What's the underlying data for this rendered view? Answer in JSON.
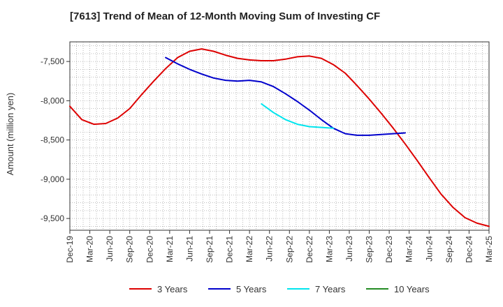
{
  "chart_data": {
    "type": "line",
    "title": "[7613]  Trend of Mean of 12-Month Moving Sum of Investing CF",
    "xlabel": "",
    "ylabel": "Amount (million yen)",
    "ylim": [
      -9650,
      -7250
    ],
    "yticks": [
      -7500,
      -8000,
      -8500,
      -9000,
      -9500
    ],
    "ytick_labels": [
      "-7,500",
      "-8,000",
      "-8,500",
      "-9,000",
      "-9,500"
    ],
    "xticks": [
      "Dec-19",
      "Mar-20",
      "Jun-20",
      "Sep-20",
      "Dec-20",
      "Mar-21",
      "Jun-21",
      "Sep-21",
      "Dec-21",
      "Mar-22",
      "Jun-22",
      "Sep-22",
      "Dec-22",
      "Mar-23",
      "Jun-23",
      "Sep-23",
      "Dec-23",
      "Mar-24",
      "Jun-24",
      "Sep-24",
      "Dec-24",
      "Mar-25"
    ],
    "grid": true,
    "legend_position": "bottom",
    "series": [
      {
        "name": "3 Years",
        "color": "#dd0000",
        "start_index": 0,
        "values": [
          -8070,
          -8240,
          -8300,
          -8290,
          -8220,
          -8100,
          -7920,
          -7750,
          -7590,
          -7450,
          -7370,
          -7340,
          -7370,
          -7420,
          -7460,
          -7480,
          -7490,
          -7490,
          -7470,
          -7440,
          -7430,
          -7460,
          -7540,
          -7650,
          -7810,
          -7980,
          -8160,
          -8350,
          -8550,
          -8760,
          -8980,
          -9190,
          -9360,
          -9490,
          -9560,
          -9600
        ]
      },
      {
        "name": "5 Years",
        "color": "#0000cc",
        "start_index": 8,
        "values": [
          -7450,
          -7530,
          -7600,
          -7660,
          -7710,
          -7740,
          -7750,
          -7740,
          -7760,
          -7820,
          -7910,
          -8010,
          -8120,
          -8240,
          -8350,
          -8420,
          -8440,
          -8440,
          -8430,
          -8420,
          -8410
        ]
      },
      {
        "name": "7 Years",
        "color": "#00e5ee",
        "start_index": 16,
        "values": [
          -8040,
          -8150,
          -8240,
          -8300,
          -8330,
          -8340,
          -8350
        ]
      },
      {
        "name": "10 Years",
        "color": "#228b22",
        "start_index": 0,
        "values": []
      }
    ]
  }
}
